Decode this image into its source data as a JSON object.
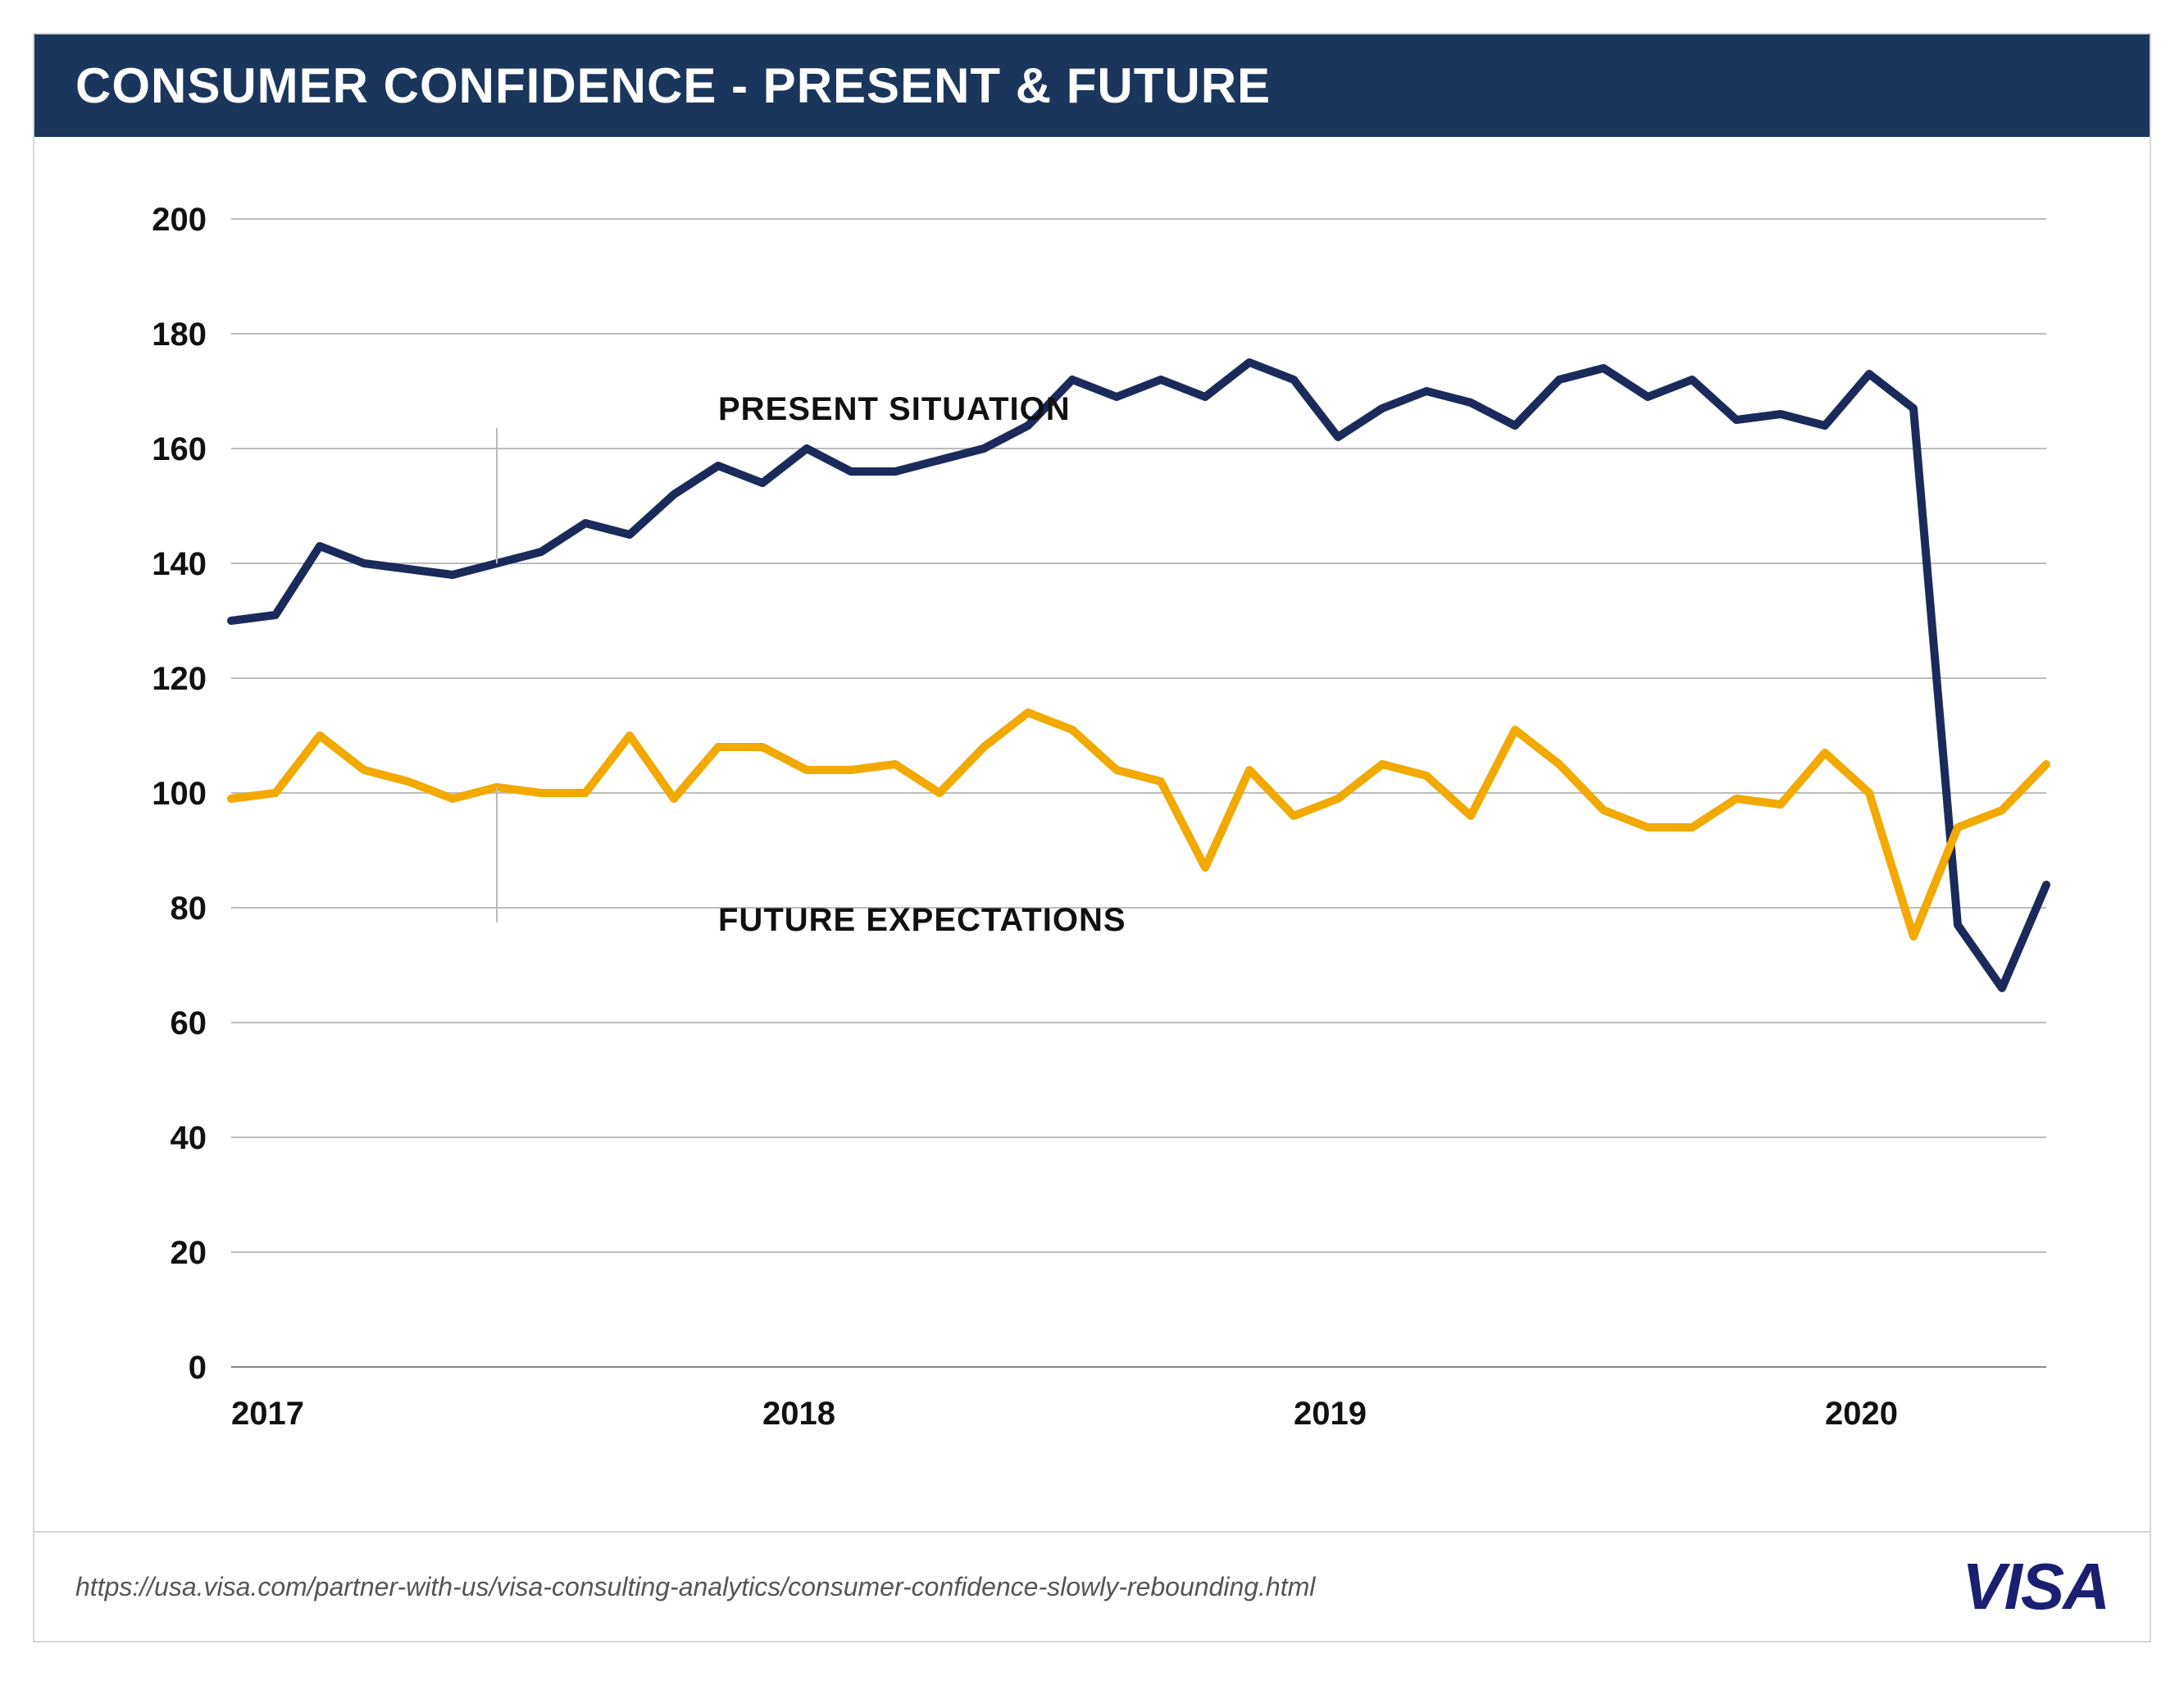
{
  "header": {
    "title": "CONSUMER CONFIDENCE - PRESENT & FUTURE",
    "title_fontsize": 60,
    "background_color": "#1b365d",
    "text_color": "#ffffff"
  },
  "chart": {
    "type": "line",
    "background_color": "#ffffff",
    "grid_color": "#bcbcbc",
    "axis_color": "#888888",
    "ylim": [
      0,
      200
    ],
    "ytick_step": 20,
    "ytick_labels": [
      "0",
      "20",
      "40",
      "60",
      "80",
      "100",
      "120",
      "140",
      "160",
      "180",
      "200"
    ],
    "ytick_fontsize": 40,
    "x_years": [
      "2017",
      "2018",
      "2019",
      "2020"
    ],
    "x_year_positions": [
      0,
      12,
      24,
      36
    ],
    "xtick_fontsize": 40,
    "n_points": 42,
    "series": [
      {
        "name": "PRESENT SITUATION",
        "label": "PRESENT SITUATION",
        "color": "#1b2a5b",
        "line_width": 10,
        "label_pos_index": 11,
        "label_y": 165,
        "leader_from_index": 6,
        "values": [
          130,
          131,
          143,
          140,
          139,
          138,
          140,
          142,
          147,
          145,
          152,
          157,
          154,
          160,
          156,
          156,
          158,
          160,
          164,
          172,
          169,
          172,
          169,
          175,
          172,
          162,
          167,
          170,
          168,
          164,
          172,
          174,
          169,
          172,
          165,
          166,
          164,
          173,
          167,
          77,
          66,
          84
        ]
      },
      {
        "name": "FUTURE EXPECTATIONS",
        "label": "FUTURE EXPECTATIONS",
        "color": "#f2a900",
        "line_width": 10,
        "label_pos_index": 11,
        "label_y": 76,
        "leader_from_index": 6,
        "values": [
          99,
          100,
          110,
          104,
          102,
          99,
          101,
          100,
          100,
          110,
          99,
          108,
          108,
          104,
          104,
          105,
          100,
          108,
          114,
          111,
          104,
          102,
          87,
          104,
          96,
          99,
          105,
          103,
          96,
          111,
          105,
          97,
          94,
          94,
          99,
          98,
          107,
          100,
          75,
          94,
          97,
          105
        ]
      }
    ],
    "series_label_fontsize": 40,
    "leader_color": "#bcbcbc"
  },
  "footer": {
    "url": "https://usa.visa.com/partner-with-us/visa-consulting-analytics/consumer-confidence-slowly-rebounding.html",
    "url_fontsize": 32,
    "logo_text": "VISA",
    "logo_fontsize": 80,
    "logo_color": "#1a1f71"
  }
}
